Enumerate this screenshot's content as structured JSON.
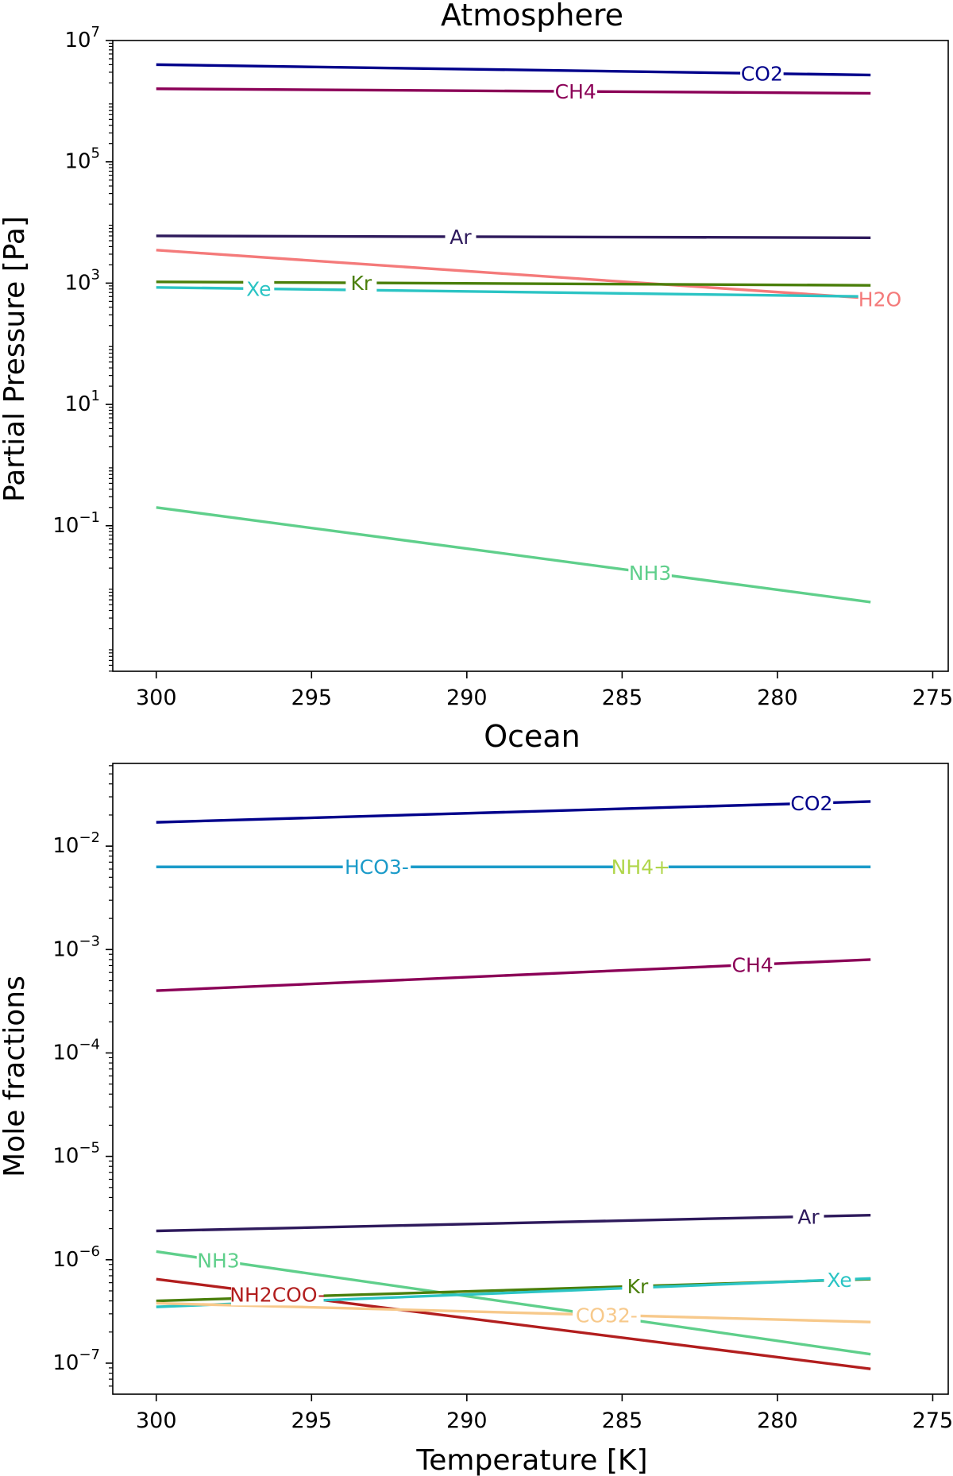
{
  "chart_data": [
    {
      "type": "line",
      "title": "Atmosphere",
      "xlabel": "",
      "ylabel": "Partial Pressure [Pa]",
      "yscale": "log",
      "xlim": [
        301.4,
        274.5
      ],
      "ylim_exp": [
        -3.4,
        7
      ],
      "x_ticks": [
        300,
        295,
        290,
        285,
        280,
        275
      ],
      "y_ticks": [
        {
          "base": "10",
          "exp": "7",
          "value": 7
        },
        {
          "base": "10",
          "exp": "5",
          "value": 5
        },
        {
          "base": "10",
          "exp": "3",
          "value": 3
        },
        {
          "base": "10",
          "exp": "1",
          "value": 1
        },
        {
          "base": "10",
          "exp": "−1",
          "value": -1
        }
      ],
      "x": [
        300,
        277
      ],
      "series": [
        {
          "name": "CO2",
          "color": "#00008b",
          "values": [
            4000000,
            2700000
          ],
          "label_x": 280.5
        },
        {
          "name": "CH4",
          "color": "#8b0057",
          "values": [
            1600000,
            1350000
          ],
          "label_x": 286.5
        },
        {
          "name": "Ar",
          "color": "#2e1a5c",
          "values": [
            6000,
            5600
          ],
          "label_x": 290.2
        },
        {
          "name": "H2O",
          "color": "#f47a7a",
          "values": [
            3500,
            560
          ],
          "label_x": 276.7
        },
        {
          "name": "Kr",
          "color": "#4a7f0b",
          "values": [
            1050,
            920
          ],
          "label_x": 293.4
        },
        {
          "name": "Xe",
          "color": "#2bc4c4",
          "values": [
            850,
            600
          ],
          "label_x": 296.7
        },
        {
          "name": "NH3",
          "color": "#5fcf8b",
          "values": [
            0.2,
            0.0055
          ],
          "label_x": 284.1
        }
      ]
    },
    {
      "type": "line",
      "title": "Ocean",
      "xlabel": "Temperature [K]",
      "ylabel": "Mole fractions",
      "yscale": "log",
      "xlim": [
        301.4,
        274.5
      ],
      "ylim_exp": [
        -7.3,
        -1.2
      ],
      "x_ticks": [
        300,
        295,
        290,
        285,
        280,
        275
      ],
      "y_ticks": [
        {
          "base": "10",
          "exp": "−2",
          "value": -2
        },
        {
          "base": "10",
          "exp": "−3",
          "value": -3
        },
        {
          "base": "10",
          "exp": "−4",
          "value": -4
        },
        {
          "base": "10",
          "exp": "−5",
          "value": -5
        },
        {
          "base": "10",
          "exp": "−6",
          "value": -6
        },
        {
          "base": "10",
          "exp": "−7",
          "value": -7
        }
      ],
      "x": [
        300,
        277
      ],
      "series": [
        {
          "name": "CO2",
          "color": "#00008b",
          "values": [
            0.017,
            0.027
          ],
          "label_x": 278.9
        },
        {
          "name": "HCO3-",
          "color": "#1b9bc9",
          "values": [
            0.0063,
            0.0063
          ],
          "label_x": 292.9
        },
        {
          "name": "NH4+",
          "color": "#b0d64a",
          "values": null,
          "label_x": 284.4,
          "label_value": 0.0063
        },
        {
          "name": "CH4",
          "color": "#8b0057",
          "values": [
            0.0004,
            0.0008
          ],
          "label_x": 280.8
        },
        {
          "name": "Ar",
          "color": "#2e1a5c",
          "values": [
            1.9e-06,
            2.7e-06
          ],
          "label_x": 279.0
        },
        {
          "name": "NH3",
          "color": "#5fcf8b",
          "values": [
            1.2e-06,
            1.22e-07
          ],
          "label_x": 298.0
        },
        {
          "name": "NH2COO-",
          "color": "#b21e1e",
          "values": [
            6.5e-07,
            8.8e-08
          ],
          "label_x": 296.1
        },
        {
          "name": "Kr",
          "color": "#4a7f0b",
          "values": [
            4e-07,
            6.5e-07
          ],
          "label_x": 284.5
        },
        {
          "name": "Xe",
          "color": "#2bc4c4",
          "values": [
            3.5e-07,
            6.6e-07
          ],
          "label_x": 278.0
        },
        {
          "name": "CO32-",
          "color": "#f7c98b",
          "values": [
            3.8e-07,
            2.5e-07
          ],
          "label_x": 285.5
        }
      ]
    }
  ]
}
